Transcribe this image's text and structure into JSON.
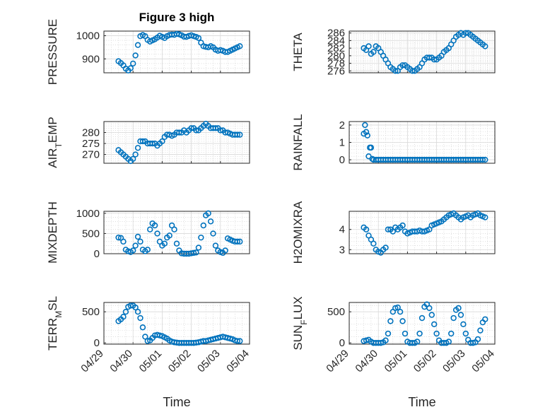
{
  "figure": {
    "title": "Figure 3 high",
    "background": "#ffffff",
    "marker_color": "#0072BD"
  },
  "chart_data": [
    {
      "type": "scatter",
      "id": "pressure",
      "title": "Figure 3 high",
      "ylabel": "PRESSURE",
      "xlabel": "",
      "xlim": [
        "04/29",
        "05/04"
      ],
      "ylim": [
        840,
        1020
      ],
      "yticks": [
        900,
        1000
      ],
      "xtick_labels": [],
      "grid": "on",
      "marker": "circle",
      "x": [
        "04/29 12:00",
        "04/29 14:00",
        "04/29 16:00",
        "04/29 18:00",
        "04/29 20:00",
        "04/29 22:00",
        "04/30 00:00",
        "04/30 02:00",
        "04/30 04:00",
        "04/30 06:00",
        "04/30 08:00",
        "04/30 10:00",
        "04/30 12:00",
        "04/30 14:00",
        "04/30 16:00",
        "04/30 18:00",
        "04/30 20:00",
        "04/30 22:00",
        "05/01 00:00",
        "05/01 02:00",
        "05/01 04:00",
        "05/01 06:00",
        "05/01 08:00",
        "05/01 10:00",
        "05/01 12:00",
        "05/01 14:00",
        "05/01 16:00",
        "05/01 18:00",
        "05/01 20:00",
        "05/01 22:00",
        "05/02 00:00",
        "05/02 02:00",
        "05/02 04:00",
        "05/02 06:00",
        "05/02 08:00",
        "05/02 10:00",
        "05/02 12:00",
        "05/02 14:00",
        "05/02 16:00",
        "05/02 18:00",
        "05/02 20:00",
        "05/02 22:00",
        "05/03 00:00",
        "05/03 02:00",
        "05/03 04:00",
        "05/03 06:00",
        "05/03 08:00",
        "05/03 10:00",
        "05/03 12:00",
        "05/03 14:00",
        "05/03 16:00"
      ],
      "y": [
        890,
        882,
        872,
        858,
        850,
        860,
        880,
        915,
        960,
        998,
        1003,
        998,
        982,
        975,
        980,
        985,
        992,
        1000,
        995,
        990,
        998,
        1003,
        1005,
        1004,
        1008,
        1006,
        1002,
        996,
        995,
        999,
        1002,
        998,
        995,
        990,
        970,
        955,
        952,
        950,
        955,
        950,
        940,
        935,
        938,
        935,
        930,
        930,
        935,
        940,
        945,
        950,
        955
      ]
    },
    {
      "type": "scatter",
      "id": "theta",
      "ylabel": "THETA",
      "xlabel": "",
      "xlim": [
        "04/29",
        "05/04"
      ],
      "ylim": [
        275.5,
        286.5
      ],
      "yticks": [
        276,
        278,
        280,
        282,
        284,
        286
      ],
      "xtick_labels": [],
      "grid": "on",
      "marker": "circle",
      "x": [
        "04/29 12:00",
        "04/29 14:00",
        "04/29 16:00",
        "04/29 18:00",
        "04/29 20:00",
        "04/29 22:00",
        "04/30 00:00",
        "04/30 02:00",
        "04/30 04:00",
        "04/30 06:00",
        "04/30 08:00",
        "04/30 10:00",
        "04/30 12:00",
        "04/30 14:00",
        "04/30 16:00",
        "04/30 18:00",
        "04/30 20:00",
        "04/30 22:00",
        "05/01 00:00",
        "05/01 02:00",
        "05/01 04:00",
        "05/01 06:00",
        "05/01 08:00",
        "05/01 10:00",
        "05/01 12:00",
        "05/01 14:00",
        "05/01 16:00",
        "05/01 18:00",
        "05/01 20:00",
        "05/01 22:00",
        "05/02 00:00",
        "05/02 02:00",
        "05/02 04:00",
        "05/02 06:00",
        "05/02 08:00",
        "05/02 10:00",
        "05/02 12:00",
        "05/02 14:00",
        "05/02 16:00",
        "05/02 18:00",
        "05/02 20:00",
        "05/02 22:00",
        "05/03 00:00",
        "05/03 02:00",
        "05/03 04:00",
        "05/03 06:00",
        "05/03 08:00",
        "05/03 10:00",
        "05/03 12:00",
        "05/03 14:00",
        "05/03 16:00"
      ],
      "y": [
        282,
        281.5,
        282.5,
        280.5,
        281,
        282.5,
        282,
        281,
        280,
        279,
        278,
        277,
        276.5,
        276,
        276,
        277,
        277.5,
        277.5,
        277,
        276.5,
        276,
        276,
        276.5,
        277,
        278,
        279,
        279.5,
        279.5,
        279.5,
        279,
        279,
        279.5,
        280,
        281,
        281.5,
        282,
        283,
        284,
        285,
        285.5,
        286,
        285.5,
        286,
        286,
        285.5,
        285,
        284.5,
        284,
        283.5,
        283,
        282.5
      ]
    },
    {
      "type": "scatter",
      "id": "air-temp",
      "ylabel": "AIR_TEMP",
      "xlabel": "",
      "xlim": [
        "04/29",
        "05/04"
      ],
      "ylim": [
        266,
        285
      ],
      "yticks": [
        270,
        275,
        280
      ],
      "xtick_labels": [],
      "grid": "on",
      "marker": "circle",
      "x": [
        "04/29 12:00",
        "04/29 14:00",
        "04/29 16:00",
        "04/29 18:00",
        "04/29 20:00",
        "04/29 22:00",
        "04/30 00:00",
        "04/30 02:00",
        "04/30 04:00",
        "04/30 06:00",
        "04/30 08:00",
        "04/30 10:00",
        "04/30 12:00",
        "04/30 14:00",
        "04/30 16:00",
        "04/30 18:00",
        "04/30 20:00",
        "04/30 22:00",
        "05/01 00:00",
        "05/01 02:00",
        "05/01 04:00",
        "05/01 06:00",
        "05/01 08:00",
        "05/01 10:00",
        "05/01 12:00",
        "05/01 14:00",
        "05/01 16:00",
        "05/01 18:00",
        "05/01 20:00",
        "05/01 22:00",
        "05/02 00:00",
        "05/02 02:00",
        "05/02 04:00",
        "05/02 06:00",
        "05/02 08:00",
        "05/02 10:00",
        "05/02 12:00",
        "05/02 14:00",
        "05/02 16:00",
        "05/02 18:00",
        "05/02 20:00",
        "05/02 22:00",
        "05/03 00:00",
        "05/03 02:00",
        "05/03 04:00",
        "05/03 06:00",
        "05/03 08:00",
        "05/03 10:00",
        "05/03 12:00",
        "05/03 14:00",
        "05/03 16:00"
      ],
      "y": [
        272,
        271,
        270,
        269,
        268,
        267,
        268,
        270,
        273,
        276,
        276,
        276,
        275,
        275,
        275,
        275,
        274,
        275,
        276,
        278,
        279,
        279,
        278.5,
        279,
        280,
        280,
        280,
        281,
        280,
        281,
        282,
        282,
        281,
        281,
        282,
        283,
        284,
        283,
        282,
        282,
        282,
        282,
        281,
        281,
        280,
        280,
        279.5,
        279,
        279,
        279,
        279
      ]
    },
    {
      "type": "scatter",
      "id": "rainfall",
      "ylabel": "RAINFALL",
      "xlabel": "",
      "xlim": [
        "04/29",
        "05/04"
      ],
      "ylim": [
        -0.2,
        2.2
      ],
      "yticks": [
        0,
        1,
        2
      ],
      "xtick_labels": [],
      "grid": "on",
      "marker": "circle",
      "x": [
        "04/29 12:00",
        "04/29 13:00",
        "04/29 14:00",
        "04/29 15:00",
        "04/29 16:00",
        "04/29 17:00",
        "04/29 18:00",
        "04/29 19:00",
        "04/29 20:00",
        "04/29 22:00",
        "04/30 00:00",
        "04/30 02:00",
        "04/30 04:00",
        "04/30 06:00",
        "04/30 08:00",
        "04/30 10:00",
        "04/30 12:00",
        "04/30 14:00",
        "04/30 16:00",
        "04/30 18:00",
        "04/30 20:00",
        "04/30 22:00",
        "05/01 00:00",
        "05/01 02:00",
        "05/01 04:00",
        "05/01 06:00",
        "05/01 08:00",
        "05/01 10:00",
        "05/01 12:00",
        "05/01 14:00",
        "05/01 16:00",
        "05/01 18:00",
        "05/01 20:00",
        "05/01 22:00",
        "05/02 00:00",
        "05/02 02:00",
        "05/02 04:00",
        "05/02 06:00",
        "05/02 08:00",
        "05/02 10:00",
        "05/02 12:00",
        "05/02 14:00",
        "05/02 16:00",
        "05/02 18:00",
        "05/02 20:00",
        "05/02 22:00",
        "05/03 00:00",
        "05/03 02:00",
        "05/03 04:00",
        "05/03 06:00",
        "05/03 08:00",
        "05/03 10:00",
        "05/03 12:00",
        "05/03 14:00",
        "05/03 16:00"
      ],
      "y": [
        1.5,
        2.0,
        1.6,
        1.4,
        0.2,
        0.7,
        0.7,
        0.05,
        0,
        0,
        0,
        0,
        0,
        0,
        0,
        0,
        0,
        0,
        0,
        0,
        0,
        0,
        0,
        0,
        0,
        0,
        0,
        0,
        0,
        0,
        0,
        0,
        0,
        0,
        0,
        0,
        0,
        0,
        0,
        0,
        0,
        0,
        0,
        0,
        0,
        0,
        0,
        0,
        0,
        0,
        0,
        0,
        0,
        0,
        0
      ]
    },
    {
      "type": "scatter",
      "id": "mixdepth",
      "ylabel": "MIXDEPTH",
      "xlabel": "",
      "xlim": [
        "04/29",
        "05/04"
      ],
      "ylim": [
        0,
        1050
      ],
      "yticks": [
        0,
        500,
        1000
      ],
      "xtick_labels": [],
      "grid": "on",
      "marker": "circle",
      "x": [
        "04/29 12:00",
        "04/29 14:00",
        "04/29 16:00",
        "04/29 18:00",
        "04/29 20:00",
        "04/29 22:00",
        "04/30 00:00",
        "04/30 02:00",
        "04/30 04:00",
        "04/30 06:00",
        "04/30 08:00",
        "04/30 10:00",
        "04/30 12:00",
        "04/30 14:00",
        "04/30 16:00",
        "04/30 18:00",
        "04/30 20:00",
        "04/30 22:00",
        "05/01 00:00",
        "05/01 02:00",
        "05/01 04:00",
        "05/01 06:00",
        "05/01 08:00",
        "05/01 10:00",
        "05/01 12:00",
        "05/01 14:00",
        "05/01 16:00",
        "05/01 18:00",
        "05/01 20:00",
        "05/01 22:00",
        "05/02 00:00",
        "05/02 02:00",
        "05/02 04:00",
        "05/02 06:00",
        "05/02 08:00",
        "05/02 10:00",
        "05/02 12:00",
        "05/02 14:00",
        "05/02 16:00",
        "05/02 18:00",
        "05/02 20:00",
        "05/02 22:00",
        "05/03 00:00",
        "05/03 02:00",
        "05/03 04:00",
        "05/03 06:00",
        "05/03 08:00",
        "05/03 10:00",
        "05/03 12:00",
        "05/03 14:00",
        "05/03 16:00"
      ],
      "y": [
        400,
        390,
        300,
        100,
        60,
        40,
        80,
        200,
        420,
        300,
        100,
        60,
        100,
        600,
        750,
        700,
        500,
        300,
        200,
        250,
        400,
        450,
        700,
        600,
        250,
        80,
        10,
        0,
        0,
        0,
        10,
        20,
        30,
        150,
        400,
        700,
        950,
        1000,
        800,
        500,
        200,
        80,
        40,
        20,
        80,
        380,
        350,
        320,
        300,
        300,
        300
      ]
    },
    {
      "type": "scatter",
      "id": "h2omixra",
      "ylabel": "H2OMIXRA",
      "xlabel": "",
      "xlim": [
        "04/29",
        "05/04"
      ],
      "ylim": [
        2.8,
        4.9
      ],
      "yticks": [
        3,
        4
      ],
      "xtick_labels": [],
      "grid": "on",
      "marker": "circle",
      "x": [
        "04/29 12:00",
        "04/29 14:00",
        "04/29 16:00",
        "04/29 18:00",
        "04/29 20:00",
        "04/29 22:00",
        "04/30 00:00",
        "04/30 02:00",
        "04/30 04:00",
        "04/30 06:00",
        "04/30 08:00",
        "04/30 10:00",
        "04/30 12:00",
        "04/30 14:00",
        "04/30 16:00",
        "04/30 18:00",
        "04/30 20:00",
        "04/30 22:00",
        "05/01 00:00",
        "05/01 02:00",
        "05/01 04:00",
        "05/01 06:00",
        "05/01 08:00",
        "05/01 10:00",
        "05/01 12:00",
        "05/01 14:00",
        "05/01 16:00",
        "05/01 18:00",
        "05/01 20:00",
        "05/01 22:00",
        "05/02 00:00",
        "05/02 02:00",
        "05/02 04:00",
        "05/02 06:00",
        "05/02 08:00",
        "05/02 10:00",
        "05/02 12:00",
        "05/02 14:00",
        "05/02 16:00",
        "05/02 18:00",
        "05/02 20:00",
        "05/02 22:00",
        "05/03 00:00",
        "05/03 02:00",
        "05/03 04:00",
        "05/03 06:00",
        "05/03 08:00",
        "05/03 10:00",
        "05/03 12:00",
        "05/03 14:00",
        "05/03 16:00"
      ],
      "y": [
        4.1,
        4.0,
        3.7,
        3.5,
        3.3,
        3.0,
        2.9,
        2.85,
        3.0,
        3.1,
        4.0,
        4.0,
        3.9,
        4.1,
        4.0,
        4.1,
        4.2,
        3.9,
        3.8,
        3.85,
        3.9,
        3.9,
        3.9,
        3.95,
        3.9,
        3.9,
        3.95,
        4.0,
        4.2,
        4.25,
        4.3,
        4.35,
        4.4,
        4.5,
        4.6,
        4.7,
        4.75,
        4.8,
        4.7,
        4.6,
        4.5,
        4.6,
        4.65,
        4.7,
        4.6,
        4.7,
        4.75,
        4.8,
        4.7,
        4.65,
        4.6
      ]
    },
    {
      "type": "scatter",
      "id": "terr-msl",
      "ylabel": "TERR_MSL",
      "xlabel": "Time",
      "xlim": [
        "04/29",
        "05/04"
      ],
      "ylim": [
        -20,
        650
      ],
      "yticks": [
        0,
        500
      ],
      "xtick_labels": [
        "04/29",
        "04/30",
        "05/01",
        "05/02",
        "05/03",
        "05/04"
      ],
      "grid": "on",
      "marker": "circle",
      "x": [
        "04/29 12:00",
        "04/29 14:00",
        "04/29 16:00",
        "04/29 18:00",
        "04/29 20:00",
        "04/29 22:00",
        "04/30 00:00",
        "04/30 02:00",
        "04/30 04:00",
        "04/30 06:00",
        "04/30 08:00",
        "04/30 10:00",
        "04/30 12:00",
        "04/30 14:00",
        "04/30 16:00",
        "04/30 18:00",
        "04/30 20:00",
        "04/30 22:00",
        "05/01 00:00",
        "05/01 02:00",
        "05/01 04:00",
        "05/01 06:00",
        "05/01 08:00",
        "05/01 10:00",
        "05/01 12:00",
        "05/01 14:00",
        "05/01 16:00",
        "05/01 18:00",
        "05/01 20:00",
        "05/01 22:00",
        "05/02 00:00",
        "05/02 02:00",
        "05/02 04:00",
        "05/02 06:00",
        "05/02 08:00",
        "05/02 10:00",
        "05/02 12:00",
        "05/02 14:00",
        "05/02 16:00",
        "05/02 18:00",
        "05/02 20:00",
        "05/02 22:00",
        "05/03 00:00",
        "05/03 02:00",
        "05/03 04:00",
        "05/03 06:00",
        "05/03 08:00",
        "05/03 10:00",
        "05/03 12:00",
        "05/03 14:00",
        "05/03 16:00"
      ],
      "y": [
        350,
        380,
        420,
        500,
        580,
        600,
        600,
        570,
        500,
        400,
        250,
        100,
        30,
        40,
        80,
        120,
        130,
        120,
        110,
        90,
        70,
        40,
        20,
        10,
        5,
        0,
        0,
        0,
        0,
        0,
        0,
        0,
        5,
        10,
        20,
        30,
        30,
        40,
        50,
        60,
        70,
        80,
        90,
        100,
        90,
        80,
        70,
        60,
        40,
        30,
        30
      ]
    },
    {
      "type": "scatter",
      "id": "sun-flux",
      "ylabel": "SUN_FLUX",
      "xlabel": "Time",
      "xlim": [
        "04/29",
        "05/04"
      ],
      "ylim": [
        -20,
        650
      ],
      "yticks": [
        0,
        500
      ],
      "xtick_labels": [
        "04/29",
        "04/30",
        "05/01",
        "05/02",
        "05/03",
        "05/04"
      ],
      "grid": "on",
      "marker": "circle",
      "x": [
        "04/29 12:00",
        "04/29 14:00",
        "04/29 16:00",
        "04/29 18:00",
        "04/29 20:00",
        "04/29 22:00",
        "04/30 00:00",
        "04/30 02:00",
        "04/30 04:00",
        "04/30 06:00",
        "04/30 08:00",
        "04/30 10:00",
        "04/30 12:00",
        "04/30 14:00",
        "04/30 16:00",
        "04/30 18:00",
        "04/30 20:00",
        "04/30 22:00",
        "05/01 00:00",
        "05/01 02:00",
        "05/01 04:00",
        "05/01 06:00",
        "05/01 08:00",
        "05/01 10:00",
        "05/01 12:00",
        "05/01 14:00",
        "05/01 16:00",
        "05/01 18:00",
        "05/01 20:00",
        "05/01 22:00",
        "05/02 00:00",
        "05/02 02:00",
        "05/02 04:00",
        "05/02 06:00",
        "05/02 08:00",
        "05/02 10:00",
        "05/02 12:00",
        "05/02 14:00",
        "05/02 16:00",
        "05/02 18:00",
        "05/02 20:00",
        "05/02 22:00",
        "05/03 00:00",
        "05/03 02:00",
        "05/03 04:00",
        "05/03 06:00",
        "05/03 08:00",
        "05/03 10:00",
        "05/03 12:00",
        "05/03 14:00",
        "05/03 16:00"
      ],
      "y": [
        30,
        40,
        50,
        20,
        0,
        0,
        0,
        0,
        10,
        40,
        150,
        350,
        500,
        560,
        570,
        500,
        350,
        150,
        20,
        0,
        0,
        0,
        20,
        150,
        400,
        580,
        620,
        560,
        450,
        300,
        150,
        40,
        0,
        0,
        0,
        20,
        150,
        400,
        530,
        560,
        450,
        300,
        150,
        50,
        0,
        0,
        10,
        60,
        200,
        330,
        380
      ]
    }
  ]
}
